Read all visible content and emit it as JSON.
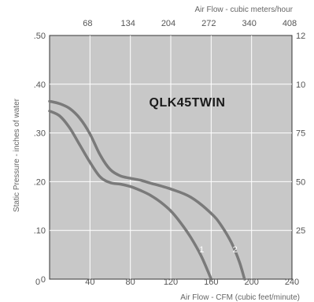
{
  "chart_data": {
    "type": "line",
    "title": "QLK45TWIN",
    "xlabel": "Air Flow - CFM (cubic feet/minute)",
    "x2label": "Air Flow - cubic meters/hour",
    "ylabel": "Static Pressure - inches of water",
    "xlim": [
      0,
      240
    ],
    "ylim": [
      0,
      0.5
    ],
    "x_ticks": [
      "0",
      "40",
      "80",
      "120",
      "160",
      "200",
      "240"
    ],
    "x2_ticks": [
      "68",
      "134",
      "204",
      "272",
      "340",
      "408"
    ],
    "y_ticks": [
      ".50",
      ".40",
      ".30",
      ".20",
      ".10",
      "0"
    ],
    "y2_ticks": [
      "12",
      "10",
      "75",
      "50",
      "25"
    ],
    "grid": true,
    "series": [
      {
        "name": "1",
        "points": [
          [
            0,
            0.345
          ],
          [
            10,
            0.335
          ],
          [
            20,
            0.31
          ],
          [
            30,
            0.275
          ],
          [
            40,
            0.24
          ],
          [
            50,
            0.21
          ],
          [
            60,
            0.198
          ],
          [
            70,
            0.195
          ],
          [
            80,
            0.19
          ],
          [
            90,
            0.182
          ],
          [
            100,
            0.172
          ],
          [
            110,
            0.158
          ],
          [
            120,
            0.14
          ],
          [
            130,
            0.115
          ],
          [
            140,
            0.085
          ],
          [
            150,
            0.048
          ],
          [
            157,
            0.015
          ],
          [
            160,
            0.0
          ]
        ]
      },
      {
        "name": "2",
        "points": [
          [
            0,
            0.365
          ],
          [
            10,
            0.36
          ],
          [
            20,
            0.35
          ],
          [
            30,
            0.33
          ],
          [
            40,
            0.298
          ],
          [
            50,
            0.255
          ],
          [
            60,
            0.225
          ],
          [
            70,
            0.212
          ],
          [
            80,
            0.207
          ],
          [
            90,
            0.203
          ],
          [
            100,
            0.197
          ],
          [
            120,
            0.185
          ],
          [
            140,
            0.168
          ],
          [
            160,
            0.135
          ],
          [
            170,
            0.11
          ],
          [
            180,
            0.075
          ],
          [
            188,
            0.035
          ],
          [
            193,
            0.0
          ]
        ]
      }
    ]
  }
}
